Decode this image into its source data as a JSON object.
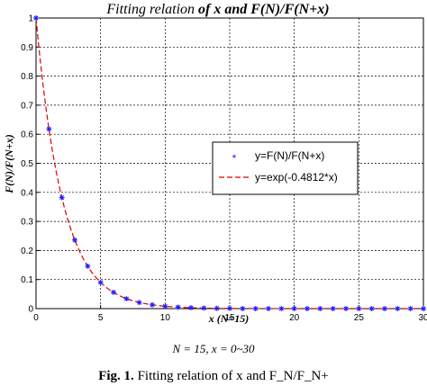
{
  "chart_data": {
    "type": "line",
    "title_plain": "Fitting relation ",
    "title_bold": "of x and F(N)/F(N+x)",
    "xlabel": "x (N=15)",
    "ylabel": "F(N)/F(N+x)",
    "xlim": [
      0,
      30
    ],
    "ylim": [
      0,
      1
    ],
    "xticks": [
      "0",
      "5",
      "10",
      "15",
      "20",
      "25",
      "30"
    ],
    "yticks": [
      "0",
      "0.1",
      "0.2",
      "0.3",
      "0.4",
      "0.5",
      "0.6",
      "0.7",
      "0.8",
      "0.9",
      "1"
    ],
    "grid": true,
    "legend_position": "center-right",
    "series": [
      {
        "name": "y=F(N)/F(N+x)",
        "style": "markers",
        "marker": "*",
        "color": "#1a1aff",
        "x": [
          0,
          1,
          2,
          3,
          4,
          5,
          6,
          7,
          8,
          9,
          10,
          11,
          12,
          13,
          14,
          15,
          16,
          17,
          18,
          19,
          20,
          21,
          22,
          23,
          24,
          25,
          26,
          27,
          28,
          29,
          30
        ],
        "y": [
          1,
          0.618,
          0.382,
          0.236,
          0.146,
          0.09,
          0.056,
          0.034,
          0.021,
          0.013,
          0.008,
          0.005,
          0.003,
          0.002,
          0.001,
          0.001,
          0,
          0,
          0,
          0,
          0,
          0,
          0,
          0,
          0,
          0,
          0,
          0,
          0,
          0,
          0
        ]
      },
      {
        "name": "y=exp(-0.4812*x)",
        "style": "dashed-line",
        "color": "#e00000",
        "fn_coef": -0.4812
      }
    ]
  },
  "caption": {
    "params": "N = 15, x = 0~30",
    "fig_label": "Fig. 1.",
    "fig_text": "Fitting relation of x and F_N/F_N+"
  }
}
